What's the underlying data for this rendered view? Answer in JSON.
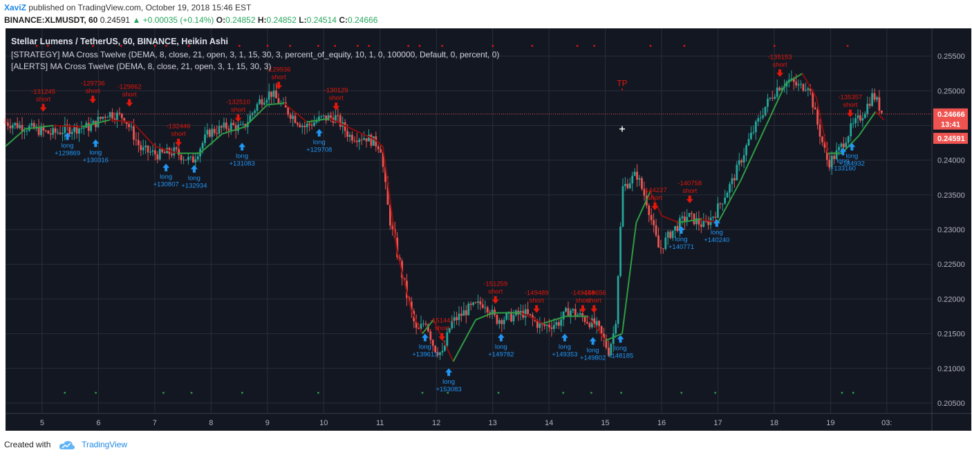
{
  "header": {
    "author": "XaviZ",
    "published": "published on TradingView.com, October 19, 2018 15:46 EST",
    "symbol": "BINANCE:XLMUSDT, 60",
    "price": "0.24591",
    "change": "+0.00035 (+0.14%)",
    "o_label": "O:",
    "o": "0.24852",
    "h_label": "H:",
    "h": "0.24852",
    "l_label": "L:",
    "l": "0.24514",
    "c_label": "C:",
    "c": "0.24666"
  },
  "legend": {
    "title": "Stellar Lumens / TetherUS, 60, BINANCE, Heikin Ashi",
    "strategy": "[STRATEGY] MA Cross Twelve (DEMA, 8, close, 21, open, 3, 1, 15, 30, 3, percent_of_equity, 10, 1, 0, 100000, Default, 0, percent, 0)",
    "alerts": "[ALERTS] MA Cross Twelve (DEMA, 8, close, 21, open, 3, 1, 15, 30, 3)"
  },
  "footer": {
    "created_with": "Created with",
    "brand": "TradingView"
  },
  "colors": {
    "background": "#131722",
    "grid": "#2a2e39",
    "up": "#26a69a",
    "down": "#ef5350",
    "fast_ma": "#8b0e0e",
    "ma_up": "#2e9e44",
    "long": "#2196f3",
    "short": "#e3170a",
    "last_price": "#ef5350"
  },
  "chart_data": {
    "type": "candlestick",
    "ylim": [
      0.2035,
      0.259
    ],
    "yticks": [
      "0.25500",
      "0.25000",
      "0.24500",
      "0.24000",
      "0.23500",
      "0.23000",
      "0.22500",
      "0.22000",
      "0.21500",
      "0.21000",
      "0.20500"
    ],
    "xlim": [
      4.35,
      20.8
    ],
    "xticks": [
      {
        "x": 5,
        "label": "5"
      },
      {
        "x": 6,
        "label": "6"
      },
      {
        "x": 7,
        "label": "7"
      },
      {
        "x": 8,
        "label": "8"
      },
      {
        "x": 9,
        "label": "9"
      },
      {
        "x": 10,
        "label": "10"
      },
      {
        "x": 11,
        "label": "11"
      },
      {
        "x": 12,
        "label": "12"
      },
      {
        "x": 13,
        "label": "13"
      },
      {
        "x": 14,
        "label": "14"
      },
      {
        "x": 15,
        "label": "15"
      },
      {
        "x": 16,
        "label": "16"
      },
      {
        "x": 17,
        "label": "17"
      },
      {
        "x": 18,
        "label": "18"
      },
      {
        "x": 19,
        "label": "19"
      },
      {
        "x": 20,
        "label": "03:"
      }
    ],
    "price_path": [
      [
        4.35,
        0.2455
      ],
      [
        4.8,
        0.2447
      ],
      [
        5.2,
        0.2438
      ],
      [
        5.5,
        0.2445
      ],
      [
        5.9,
        0.2448
      ],
      [
        6.2,
        0.2468
      ],
      [
        6.5,
        0.2462
      ],
      [
        6.8,
        0.2415
      ],
      [
        7.1,
        0.2408
      ],
      [
        7.4,
        0.2412
      ],
      [
        7.7,
        0.2398
      ],
      [
        8.0,
        0.244
      ],
      [
        8.4,
        0.245
      ],
      [
        8.6,
        0.2445
      ],
      [
        8.9,
        0.2485
      ],
      [
        9.1,
        0.2498
      ],
      [
        9.3,
        0.2478
      ],
      [
        9.7,
        0.2448
      ],
      [
        10.0,
        0.246
      ],
      [
        10.25,
        0.2462
      ],
      [
        10.5,
        0.2435
      ],
      [
        10.8,
        0.2433
      ],
      [
        11.05,
        0.242
      ],
      [
        11.2,
        0.232
      ],
      [
        11.5,
        0.221
      ],
      [
        11.7,
        0.215
      ],
      [
        11.85,
        0.217
      ],
      [
        12.0,
        0.213
      ],
      [
        12.15,
        0.212
      ],
      [
        12.3,
        0.2165
      ],
      [
        12.6,
        0.2185
      ],
      [
        12.9,
        0.2195
      ],
      [
        13.1,
        0.217
      ],
      [
        13.4,
        0.2175
      ],
      [
        13.6,
        0.218
      ],
      [
        13.9,
        0.216
      ],
      [
        14.2,
        0.2165
      ],
      [
        14.4,
        0.2185
      ],
      [
        14.7,
        0.217
      ],
      [
        14.9,
        0.216
      ],
      [
        15.1,
        0.2125
      ],
      [
        15.22,
        0.216
      ],
      [
        15.35,
        0.236
      ],
      [
        15.6,
        0.238
      ],
      [
        15.8,
        0.2335
      ],
      [
        15.9,
        0.23
      ],
      [
        16.0,
        0.227
      ],
      [
        16.2,
        0.2295
      ],
      [
        16.5,
        0.232
      ],
      [
        16.8,
        0.2305
      ],
      [
        17.0,
        0.2325
      ],
      [
        17.3,
        0.237
      ],
      [
        17.6,
        0.243
      ],
      [
        17.9,
        0.248
      ],
      [
        18.1,
        0.2505
      ],
      [
        18.3,
        0.2515
      ],
      [
        18.5,
        0.2505
      ],
      [
        18.65,
        0.251
      ],
      [
        18.8,
        0.2455
      ],
      [
        19.0,
        0.2395
      ],
      [
        19.2,
        0.2415
      ],
      [
        19.4,
        0.2445
      ],
      [
        19.6,
        0.2465
      ],
      [
        19.8,
        0.2495
      ],
      [
        19.95,
        0.247
      ]
    ],
    "ma_path": [
      [
        4.35,
        0.242
      ],
      [
        4.7,
        0.2445
      ],
      [
        5.2,
        0.245
      ],
      [
        5.7,
        0.2448
      ],
      [
        6.2,
        0.2458
      ],
      [
        6.6,
        0.2455
      ],
      [
        7.0,
        0.242
      ],
      [
        7.4,
        0.241
      ],
      [
        7.8,
        0.241
      ],
      [
        8.2,
        0.2438
      ],
      [
        8.6,
        0.2448
      ],
      [
        9.0,
        0.248
      ],
      [
        9.3,
        0.2482
      ],
      [
        9.7,
        0.2455
      ],
      [
        10.1,
        0.246
      ],
      [
        10.5,
        0.2445
      ],
      [
        10.9,
        0.243
      ],
      [
        11.05,
        0.242
      ],
      [
        11.3,
        0.227
      ],
      [
        11.55,
        0.2185
      ],
      [
        11.75,
        0.215
      ],
      [
        11.95,
        0.217
      ],
      [
        12.3,
        0.211
      ],
      [
        12.7,
        0.217
      ],
      [
        13.0,
        0.218
      ],
      [
        13.5,
        0.218
      ],
      [
        13.9,
        0.2165
      ],
      [
        14.3,
        0.2175
      ],
      [
        14.7,
        0.2175
      ],
      [
        15.0,
        0.214
      ],
      [
        15.3,
        0.215
      ],
      [
        15.55,
        0.231
      ],
      [
        15.8,
        0.2355
      ],
      [
        16.0,
        0.232
      ],
      [
        16.3,
        0.231
      ],
      [
        16.7,
        0.2315
      ],
      [
        17.0,
        0.231
      ],
      [
        17.4,
        0.237
      ],
      [
        17.8,
        0.244
      ],
      [
        18.2,
        0.251
      ],
      [
        18.5,
        0.2525
      ],
      [
        18.75,
        0.249
      ],
      [
        18.95,
        0.241
      ],
      [
        19.2,
        0.241
      ],
      [
        19.5,
        0.2435
      ],
      [
        19.8,
        0.247
      ],
      [
        19.95,
        0.2458
      ]
    ],
    "tp_marker": {
      "x": 15.3,
      "y": 0.2503,
      "label": "TP"
    },
    "cursor": {
      "x": 15.3,
      "y": 0.2445
    },
    "signals": [
      {
        "type": "short",
        "x": 5.02,
        "y": 0.247,
        "id": "-131245"
      },
      {
        "type": "long",
        "x": 5.45,
        "y": 0.244,
        "id": "+129869"
      },
      {
        "type": "short",
        "x": 5.9,
        "y": 0.2482,
        "id": "-129736"
      },
      {
        "type": "long",
        "x": 5.95,
        "y": 0.243,
        "id": "+130316"
      },
      {
        "type": "short",
        "x": 6.55,
        "y": 0.2477,
        "id": "-129862"
      },
      {
        "type": "short",
        "x": 7.42,
        "y": 0.242,
        "id": "-132446"
      },
      {
        "type": "long",
        "x": 7.2,
        "y": 0.2395,
        "id": "+130807"
      },
      {
        "type": "long",
        "x": 7.7,
        "y": 0.2393,
        "id": "+132934"
      },
      {
        "type": "short",
        "x": 8.48,
        "y": 0.2455,
        "id": "-132510"
      },
      {
        "type": "long",
        "x": 8.55,
        "y": 0.2425,
        "id": "+131083"
      },
      {
        "type": "short",
        "x": 9.2,
        "y": 0.2502,
        "id": "-129936"
      },
      {
        "type": "long",
        "x": 9.92,
        "y": 0.2445,
        "id": "+129708"
      },
      {
        "type": "short",
        "x": 10.22,
        "y": 0.2472,
        "id": "-130129"
      },
      {
        "type": "long",
        "x": 11.8,
        "y": 0.215,
        "id": "+139613"
      },
      {
        "type": "short",
        "x": 12.1,
        "y": 0.214,
        "id": "-151441"
      },
      {
        "type": "long",
        "x": 12.22,
        "y": 0.21,
        "id": "+153083"
      },
      {
        "type": "short",
        "x": 13.05,
        "y": 0.2193,
        "id": "-151259"
      },
      {
        "type": "long",
        "x": 13.15,
        "y": 0.215,
        "id": "+149782"
      },
      {
        "type": "short",
        "x": 13.78,
        "y": 0.218,
        "id": "-149489"
      },
      {
        "type": "long",
        "x": 14.28,
        "y": 0.215,
        "id": "+149353"
      },
      {
        "type": "short",
        "x": 14.6,
        "y": 0.218,
        "id": "-149454"
      },
      {
        "type": "short",
        "x": 14.8,
        "y": 0.218,
        "id": "-149656"
      },
      {
        "type": "long",
        "x": 14.78,
        "y": 0.2145,
        "id": "+149802"
      },
      {
        "type": "long",
        "x": 15.27,
        "y": 0.2148,
        "id": "+148185"
      },
      {
        "type": "short",
        "x": 15.88,
        "y": 0.2328,
        "id": "-144227"
      },
      {
        "type": "short",
        "x": 16.5,
        "y": 0.2338,
        "id": "-140758"
      },
      {
        "type": "long",
        "x": 16.35,
        "y": 0.2305,
        "id": "+140771"
      },
      {
        "type": "long",
        "x": 16.98,
        "y": 0.2315,
        "id": "+140240"
      },
      {
        "type": "short",
        "x": 18.1,
        "y": 0.252,
        "id": "-135153"
      },
      {
        "type": "short",
        "x": 19.35,
        "y": 0.2462,
        "id": "-135357"
      },
      {
        "type": "long",
        "x": 19.22,
        "y": 0.2418,
        "id": "+133160"
      },
      {
        "type": "long",
        "x": 19.38,
        "y": 0.2425,
        "id": "+134932"
      }
    ],
    "dots_top": [
      4.9,
      5.1,
      5.9,
      6.4,
      7.0,
      7.2,
      7.6,
      8.5,
      9.0,
      9.4,
      9.9,
      10.2,
      10.6,
      10.8,
      11.5,
      11.7,
      12.1,
      13.0,
      13.7,
      14.5,
      14.8,
      15.8,
      16.4,
      18.0,
      19.3
    ],
    "dots_bottom": [
      5.4,
      5.95,
      7.15,
      7.65,
      8.55,
      9.9,
      11.75,
      12.2,
      13.1,
      14.25,
      14.75,
      15.28,
      16.35,
      16.95,
      19.2,
      19.4
    ],
    "price_labels": [
      {
        "value": "0.24666",
        "y": 0.24666,
        "color": "#ef5350"
      },
      {
        "value": "13:41",
        "y": 0.2452,
        "color": "#ef5350"
      },
      {
        "value": "0.24591",
        "y": 0.24315,
        "color": "#ef5350"
      }
    ],
    "last_price_line": 0.24666
  }
}
